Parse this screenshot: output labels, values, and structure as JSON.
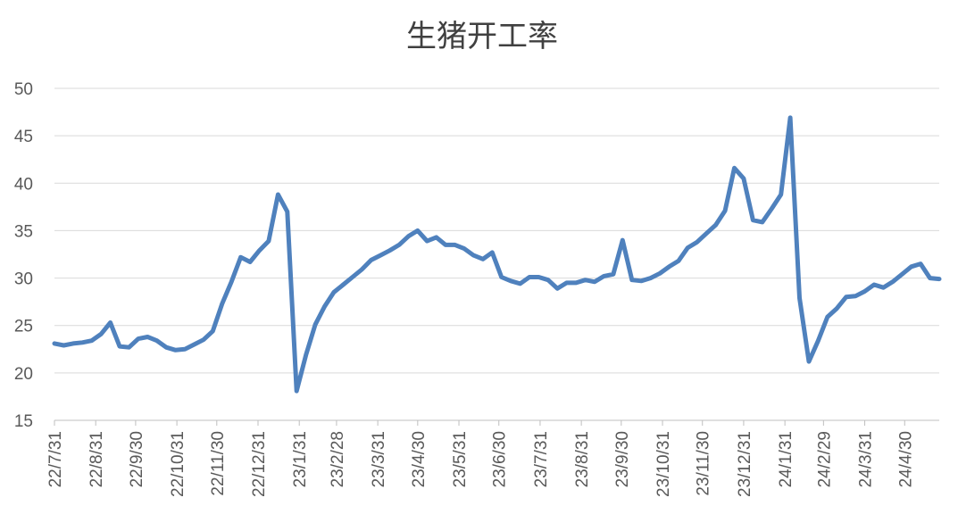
{
  "chart_data": {
    "type": "line",
    "title": "生猪开工率",
    "xlabel": "",
    "ylabel": "",
    "ylim": [
      15,
      50
    ],
    "yticks": [
      15,
      20,
      25,
      30,
      35,
      40,
      45,
      50
    ],
    "grid": "horizontal",
    "legend": "none",
    "x_tick_labels": [
      "22/7/31",
      "22/8/31",
      "22/9/30",
      "22/10/31",
      "22/11/30",
      "22/12/31",
      "23/1/31",
      "23/2/28",
      "23/3/31",
      "23/4/30",
      "23/5/31",
      "23/6/30",
      "23/7/31",
      "23/8/31",
      "23/9/30",
      "23/10/31",
      "23/11/30",
      "23/12/31",
      "24/1/31",
      "24/2/29",
      "24/3/31",
      "24/4/30"
    ],
    "series": [
      {
        "color": "#4f81bd",
        "x": [
          "22/7/31",
          "22/8/7",
          "22/8/14",
          "22/8/21",
          "22/8/28",
          "22/9/4",
          "22/9/11",
          "22/9/18",
          "22/9/25",
          "22/10/2",
          "22/10/9",
          "22/10/16",
          "22/10/23",
          "22/10/30",
          "22/11/6",
          "22/11/13",
          "22/11/20",
          "22/11/27",
          "22/12/4",
          "22/12/11",
          "22/12/18",
          "22/12/25",
          "23/1/1",
          "23/1/8",
          "23/1/15",
          "23/1/22",
          "23/1/29",
          "23/2/5",
          "23/2/12",
          "23/2/19",
          "23/2/26",
          "23/3/5",
          "23/3/12",
          "23/3/19",
          "23/3/26",
          "23/4/2",
          "23/4/9",
          "23/4/16",
          "23/4/23",
          "23/4/30",
          "23/5/7",
          "23/5/14",
          "23/5/21",
          "23/5/28",
          "23/6/4",
          "23/6/11",
          "23/6/18",
          "23/6/25",
          "23/7/2",
          "23/7/9",
          "23/7/16",
          "23/7/23",
          "23/7/30",
          "23/8/6",
          "23/8/13",
          "23/8/20",
          "23/8/27",
          "23/9/3",
          "23/9/10",
          "23/9/17",
          "23/9/24",
          "23/10/1",
          "23/10/8",
          "23/10/15",
          "23/10/22",
          "23/10/29",
          "23/11/5",
          "23/11/12",
          "23/11/19",
          "23/11/26",
          "23/12/3",
          "23/12/10",
          "23/12/17",
          "23/12/24",
          "23/12/31",
          "24/1/7",
          "24/1/14",
          "24/1/21",
          "24/1/28",
          "24/2/4",
          "24/2/11",
          "24/2/18",
          "24/2/25",
          "24/3/3",
          "24/3/10",
          "24/3/17",
          "24/3/24",
          "24/3/31",
          "24/4/7",
          "24/4/14",
          "24/4/21",
          "24/4/28",
          "24/5/5",
          "24/5/12",
          "24/5/19",
          "24/5/26"
        ],
        "values": [
          23.1,
          22.9,
          23.1,
          23.2,
          23.4,
          24.1,
          25.3,
          22.8,
          22.7,
          23.6,
          23.8,
          23.4,
          22.7,
          22.4,
          22.5,
          23.0,
          23.5,
          24.4,
          27.3,
          29.6,
          32.2,
          31.7,
          32.9,
          33.9,
          38.8,
          37.0,
          18.1,
          21.9,
          25.1,
          27.0,
          28.5,
          29.3,
          30.1,
          30.9,
          31.9,
          32.4,
          32.9,
          33.5,
          34.4,
          35.0,
          33.9,
          34.3,
          33.5,
          33.5,
          33.1,
          32.4,
          32.0,
          32.7,
          30.1,
          29.7,
          29.4,
          30.1,
          30.1,
          29.8,
          28.9,
          29.5,
          29.5,
          29.8,
          29.6,
          30.2,
          30.4,
          34.0,
          29.8,
          29.7,
          30.0,
          30.5,
          31.2,
          31.8,
          33.2,
          33.8,
          34.7,
          35.6,
          37.1,
          41.6,
          40.5,
          36.1,
          35.9,
          37.3,
          38.8,
          46.9,
          27.9,
          21.2,
          23.4,
          25.9,
          26.8,
          28.0,
          28.1,
          28.6,
          29.3,
          29.0,
          29.6,
          30.4,
          31.2,
          31.5,
          30.0,
          29.9
        ]
      }
    ]
  }
}
